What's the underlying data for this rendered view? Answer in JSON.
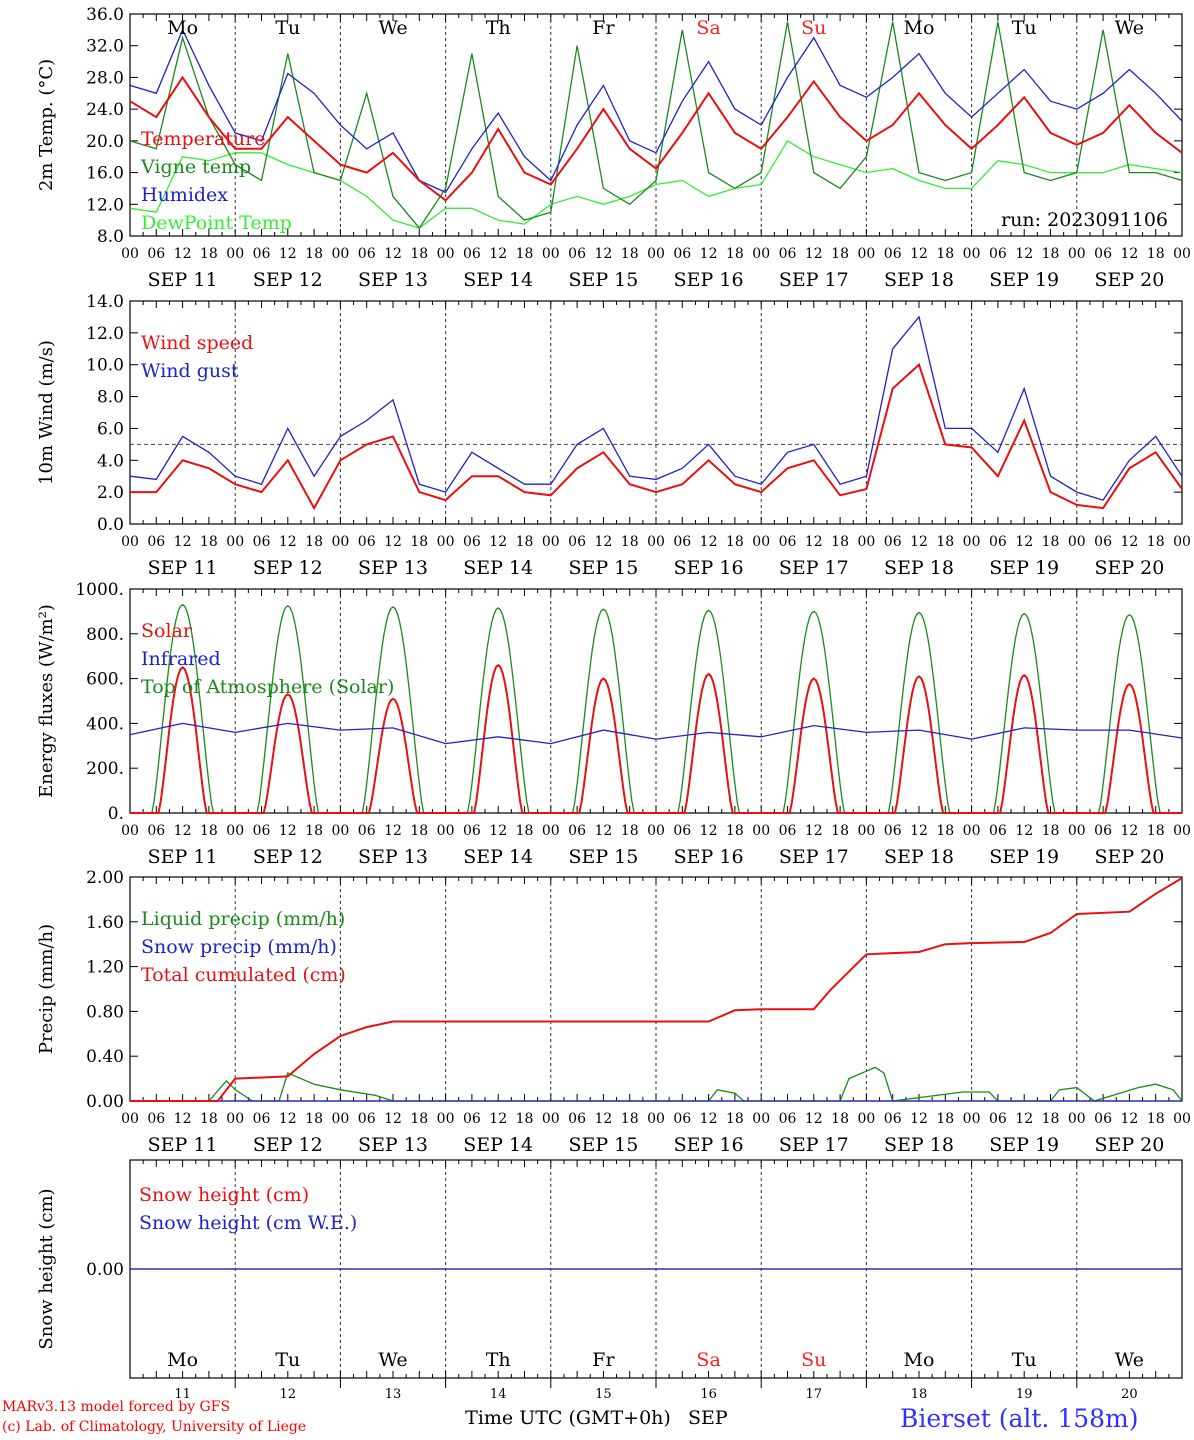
{
  "run_label": "run: 2023091106",
  "station": "Bierset (alt. 158m)",
  "credit_line1": "MARv3.13 model forced by GFS",
  "credit_line2": "(c) Lab. of Climatology, University of Liege",
  "time_axis_label": "Time UTC (GMT+0h)",
  "month_label": "SEP",
  "day_names": [
    "Mo",
    "Tu",
    "We",
    "Th",
    "Fr",
    "Sa",
    "Su",
    "Mo",
    "Tu",
    "We"
  ],
  "weekend_color": "#ff2020",
  "weekday_color": "#000000",
  "weekend_flags": [
    false,
    false,
    false,
    false,
    false,
    true,
    true,
    false,
    false,
    false
  ],
  "date_labels": [
    "SEP 11",
    "SEP 12",
    "SEP 13",
    "SEP 14",
    "SEP 15",
    "SEP 16",
    "SEP 17",
    "SEP 18",
    "SEP 19",
    "SEP 20"
  ],
  "day_numbers": [
    "11",
    "12",
    "13",
    "14",
    "15",
    "16",
    "17",
    "18",
    "19",
    "20"
  ],
  "hour_ticks": [
    "00",
    "06",
    "12",
    "18"
  ],
  "final_hour_tick": "00",
  "chart_data": [
    {
      "type": "line",
      "id": "temperature",
      "ylabel": "2m Temp. (°C)",
      "ylim": [
        8,
        36
      ],
      "yticks": [
        "8.0",
        "12.0",
        "16.0",
        "20.0",
        "24.0",
        "28.0",
        "32.0",
        "36.0"
      ],
      "x_unit": "hours since SEP 11 00 UTC",
      "series": [
        {
          "name": "DewPoint Temp",
          "color": "#33ee33",
          "x": [
            0,
            6,
            12,
            18,
            24,
            30,
            36,
            42,
            48,
            54,
            60,
            66,
            72,
            78,
            84,
            90,
            96,
            102,
            108,
            114,
            120,
            126,
            132,
            138,
            144,
            150,
            156,
            162,
            168,
            174,
            180,
            186,
            192,
            198,
            204,
            210,
            216,
            222,
            228,
            234,
            240
          ],
          "values": [
            11.5,
            11,
            18,
            17.5,
            18.5,
            18.5,
            17,
            16,
            15,
            13,
            10,
            9,
            11.5,
            11.5,
            10,
            9.5,
            12,
            13,
            12,
            13,
            14.5,
            15,
            13,
            14,
            14.5,
            20,
            18,
            17,
            16,
            16.5,
            15,
            14,
            14,
            17.5,
            17,
            16,
            16,
            16,
            17,
            16.5,
            16
          ]
        },
        {
          "name": "Vigne temp",
          "color": "#1a8a1a",
          "x": [
            0,
            6,
            12,
            18,
            24,
            30,
            36,
            42,
            48,
            54,
            60,
            66,
            72,
            78,
            84,
            90,
            96,
            102,
            108,
            114,
            120,
            126,
            132,
            138,
            144,
            150,
            156,
            162,
            168,
            174,
            180,
            186,
            192,
            198,
            204,
            210,
            216,
            222,
            228,
            234,
            240
          ],
          "values": [
            20,
            19,
            33,
            23,
            17,
            15,
            31,
            16,
            15,
            26,
            13,
            9,
            14,
            31,
            13,
            10,
            11,
            32,
            14,
            12,
            15,
            34,
            16,
            14,
            16,
            35,
            16,
            14,
            18,
            35,
            16,
            15,
            16,
            35,
            16,
            15,
            16,
            34,
            16,
            16,
            15
          ]
        },
        {
          "name": "Humidex",
          "color": "#2020cc",
          "x": [
            0,
            6,
            12,
            18,
            24,
            30,
            36,
            42,
            48,
            54,
            60,
            66,
            72,
            78,
            84,
            90,
            96,
            102,
            108,
            114,
            120,
            126,
            132,
            138,
            144,
            150,
            156,
            162,
            168,
            174,
            180,
            186,
            192,
            198,
            204,
            210,
            216,
            222,
            228,
            234,
            240
          ],
          "values": [
            27,
            26,
            34,
            27,
            21,
            20,
            28.5,
            26,
            22,
            19,
            21,
            15,
            13.5,
            19,
            23.5,
            18,
            15,
            22,
            27,
            20,
            18.5,
            25,
            30,
            24,
            22,
            28,
            33,
            27,
            25.5,
            28,
            31,
            26,
            23,
            26,
            29,
            25,
            24,
            26,
            29,
            26,
            22.5
          ]
        },
        {
          "name": "Temperature",
          "color": "#e81010",
          "x": [
            0,
            6,
            12,
            18,
            24,
            30,
            36,
            42,
            48,
            54,
            60,
            66,
            72,
            78,
            84,
            90,
            96,
            102,
            108,
            114,
            120,
            126,
            132,
            138,
            144,
            150,
            156,
            162,
            168,
            174,
            180,
            186,
            192,
            198,
            204,
            210,
            216,
            222,
            228,
            234,
            240
          ],
          "values": [
            25,
            23,
            28,
            23,
            19,
            19,
            23,
            20,
            17,
            16,
            18.5,
            15,
            12.5,
            16,
            21.5,
            16,
            14.5,
            19,
            24,
            19,
            16.5,
            21,
            26,
            21,
            19,
            23,
            27.5,
            23,
            20,
            22,
            26,
            22,
            19,
            22,
            25.5,
            21,
            19.5,
            21,
            24.5,
            21,
            18.5
          ]
        }
      ]
    },
    {
      "type": "line",
      "id": "wind",
      "ylabel": "10m Wind (m/s)",
      "ylim": [
        0,
        14
      ],
      "yticks": [
        "0.0",
        "2.0",
        "4.0",
        "6.0",
        "8.0",
        "10.0",
        "12.0",
        "14.0"
      ],
      "reference_line": 5,
      "series": [
        {
          "name": "Wind gust",
          "color": "#2020cc",
          "x": [
            0,
            6,
            12,
            18,
            24,
            30,
            36,
            42,
            48,
            54,
            60,
            66,
            72,
            78,
            84,
            90,
            96,
            102,
            108,
            114,
            120,
            126,
            132,
            138,
            144,
            150,
            156,
            162,
            168,
            174,
            180,
            186,
            192,
            198,
            204,
            210,
            216,
            222,
            228,
            234,
            240
          ],
          "values": [
            3,
            2.8,
            5.5,
            4.5,
            3,
            2.5,
            6,
            3,
            5.5,
            6.5,
            7.8,
            2.5,
            2,
            4.5,
            3.5,
            2.5,
            2.5,
            5,
            6,
            3,
            2.8,
            3.5,
            5,
            3,
            2.5,
            4.5,
            5,
            2.5,
            3,
            11,
            13,
            6,
            6,
            4.5,
            8.5,
            3,
            2,
            1.5,
            4,
            5.5,
            3
          ]
        },
        {
          "name": "Wind speed",
          "color": "#e81010",
          "x": [
            0,
            6,
            12,
            18,
            24,
            30,
            36,
            42,
            48,
            54,
            60,
            66,
            72,
            78,
            84,
            90,
            96,
            102,
            108,
            114,
            120,
            126,
            132,
            138,
            144,
            150,
            156,
            162,
            168,
            174,
            180,
            186,
            192,
            198,
            204,
            210,
            216,
            222,
            228,
            234,
            240
          ],
          "values": [
            2,
            2,
            4,
            3.5,
            2.5,
            2,
            4,
            1,
            4,
            5,
            5.5,
            2,
            1.5,
            3,
            3,
            2,
            1.8,
            3.5,
            4.5,
            2.5,
            2,
            2.5,
            4,
            2.5,
            2,
            3.5,
            4,
            1.8,
            2.2,
            8.5,
            10,
            5,
            4.8,
            3,
            6.5,
            2,
            1.2,
            1,
            3.5,
            4.5,
            2.2
          ]
        }
      ]
    },
    {
      "type": "line",
      "id": "energy",
      "ylabel": "Energy fluxes (W/m²)",
      "ylim": [
        0,
        1000
      ],
      "yticks": [
        "0.",
        "200.",
        "400.",
        "600.",
        "800.",
        "1000."
      ],
      "series": [
        {
          "name": "Top of Atmosphere (Solar)",
          "color": "#1a8a1a",
          "daily_peak": [
            930,
            925,
            920,
            915,
            910,
            905,
            900,
            895,
            890,
            885
          ]
        },
        {
          "name": "Solar",
          "color": "#e81010",
          "daily_peak": [
            650,
            530,
            510,
            660,
            600,
            620,
            600,
            610,
            615,
            575
          ]
        },
        {
          "name": "Infrared",
          "color": "#2020cc",
          "x": [
            0,
            12,
            24,
            36,
            48,
            60,
            72,
            84,
            96,
            108,
            120,
            132,
            144,
            156,
            168,
            180,
            192,
            204,
            216,
            228,
            240
          ],
          "values": [
            350,
            400,
            360,
            400,
            370,
            380,
            310,
            340,
            310,
            370,
            330,
            360,
            340,
            390,
            360,
            370,
            330,
            380,
            370,
            370,
            335
          ]
        }
      ]
    },
    {
      "type": "line",
      "id": "precip",
      "ylabel": "Precip (mm/h)",
      "ylim": [
        0,
        2
      ],
      "yticks": [
        "0.00",
        "0.40",
        "0.80",
        "1.20",
        "1.60",
        "2.00"
      ],
      "series": [
        {
          "name": "Liquid precip (mm/h)",
          "color": "#1a8a1a",
          "x": [
            0,
            18,
            22,
            24,
            28,
            34,
            36,
            42,
            48,
            56,
            60,
            132,
            134,
            138,
            140,
            162,
            164,
            170,
            172,
            174,
            190,
            196,
            198,
            210,
            212,
            216,
            220,
            230,
            234,
            238,
            240
          ],
          "values": [
            0,
            0,
            0.18,
            0.1,
            0,
            0,
            0.25,
            0.15,
            0.1,
            0.05,
            0,
            0,
            0.1,
            0.07,
            0,
            0,
            0.2,
            0.3,
            0.25,
            0,
            0.08,
            0.08,
            0,
            0,
            0.1,
            0.12,
            0,
            0.12,
            0.15,
            0.1,
            0
          ]
        },
        {
          "name": "Snow precip (mm/h)",
          "color": "#2020cc",
          "x": [
            0,
            240
          ],
          "values": [
            0,
            0
          ]
        },
        {
          "name": "Total cumulated (cm)",
          "color": "#e81010",
          "x": [
            0,
            20,
            24,
            36,
            42,
            48,
            54,
            60,
            132,
            138,
            144,
            156,
            160,
            168,
            180,
            186,
            192,
            204,
            210,
            216,
            228,
            234,
            240
          ],
          "values": [
            0,
            0,
            0.2,
            0.22,
            0.42,
            0.58,
            0.66,
            0.71,
            0.71,
            0.81,
            0.82,
            0.82,
            1.0,
            1.31,
            1.33,
            1.4,
            1.41,
            1.42,
            1.5,
            1.67,
            1.69,
            1.85,
            1.99
          ]
        }
      ]
    },
    {
      "type": "line",
      "id": "snow",
      "ylabel": "Snow height (cm)",
      "ylim": [
        -1,
        1
      ],
      "yticks": [
        "0.00"
      ],
      "series": [
        {
          "name": "Snow height (cm)",
          "color": "#e81010",
          "x": [
            0,
            240
          ],
          "values": [
            0,
            0
          ]
        },
        {
          "name": "Snow height (cm W.E.)",
          "color": "#2020cc",
          "x": [
            0,
            240
          ],
          "values": [
            0,
            0
          ]
        }
      ]
    }
  ]
}
